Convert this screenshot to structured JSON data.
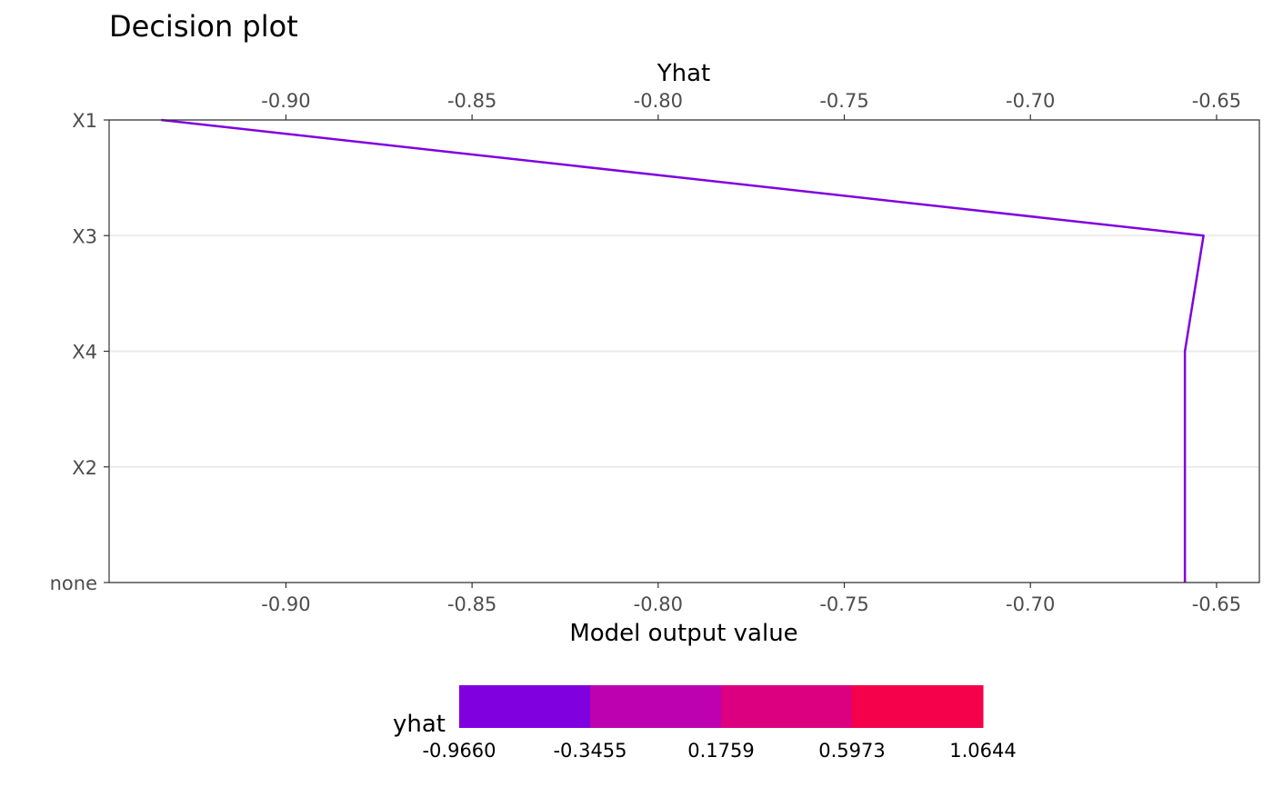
{
  "chart_data": {
    "type": "line",
    "title": "Decision plot",
    "xlabel": "Model output value",
    "x2label": "Yhat",
    "xlim": [
      -0.9475,
      -0.6385
    ],
    "x_ticks": [
      -0.9,
      -0.85,
      -0.8,
      -0.75,
      -0.7,
      -0.65
    ],
    "x_tick_labels": [
      "-0.90",
      "-0.85",
      "-0.80",
      "-0.75",
      "-0.70",
      "-0.65"
    ],
    "y_categories": [
      "X1",
      "X3",
      "X4",
      "X2",
      "none"
    ],
    "grid": "horizontal",
    "series": [
      {
        "color": "#8000E0",
        "points": [
          {
            "feature": "none",
            "value": -0.6585
          },
          {
            "feature": "X2",
            "value": -0.6585
          },
          {
            "feature": "X4",
            "value": -0.6585
          },
          {
            "feature": "X3",
            "value": -0.6535
          },
          {
            "feature": "X1",
            "value": -0.9335
          }
        ]
      }
    ],
    "legend": {
      "title": "yhat",
      "position": "bottom",
      "breaks": [
        "-0.9660",
        "-0.3455",
        "0.1759",
        "0.5973",
        "1.0644"
      ],
      "colors": [
        "#8000E0",
        "#BD00B0",
        "#DC0080",
        "#F5004A"
      ]
    }
  }
}
